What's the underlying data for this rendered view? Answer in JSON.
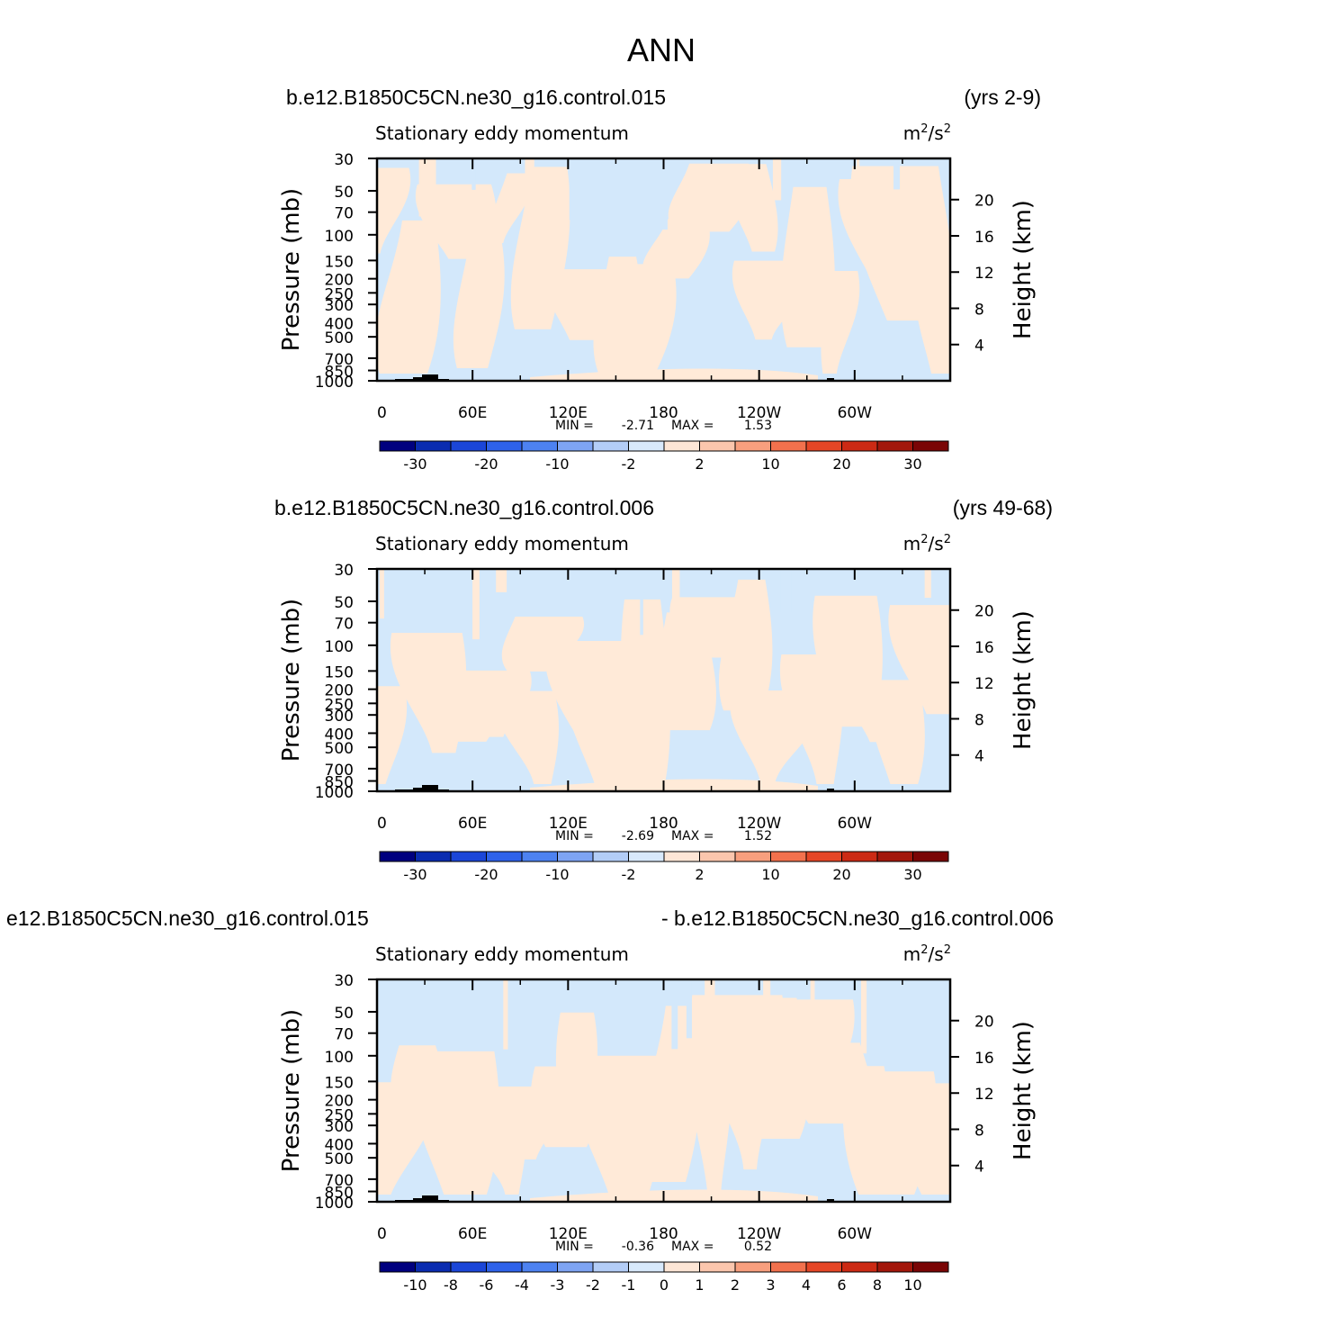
{
  "figure_title": "ANN",
  "colors": {
    "negative_small": "#d3e8fb",
    "positive_small": "#ffead8",
    "topography": "#000000"
  },
  "chart_data": [
    {
      "type": "heatmap",
      "case_left": "b.e12.B1850C5CN.ne30_g16.control.015",
      "case_right": "(yrs 2-9)",
      "subtitle": "Stationary eddy momentum",
      "units": "m²/s²",
      "ylabel": "Pressure (mb)",
      "ylabel_right": "Height (km)",
      "y_scale": "log",
      "ylim": [
        1000,
        30
      ],
      "pressure_ticks": [
        "30",
        "50",
        "70",
        "100",
        "150",
        "200",
        "250",
        "300",
        "400",
        "500",
        "700",
        "850",
        "1000"
      ],
      "height_ticks": [
        "20",
        "16",
        "12",
        "8",
        "4"
      ],
      "x_ticks": [
        "0",
        "60E",
        "120E",
        "180",
        "120W",
        "60W"
      ],
      "stats": {
        "min_label": "MIN =",
        "min": "-2.71",
        "max_label": "MAX =",
        "max": "1.53"
      },
      "colorbar_labels": [
        "-30",
        "-20",
        "-10",
        "-2",
        "2",
        "10",
        "20",
        "30"
      ],
      "colorbar_colors": [
        "#00007f",
        "#0a2cb0",
        "#1b46d8",
        "#2e62ea",
        "#4d82f1",
        "#7ea4f3",
        "#b3cdf7",
        "#d8e9fb",
        "#fde6d6",
        "#fbc6ad",
        "#f89f7e",
        "#f2714d",
        "#e54626",
        "#cc2a14",
        "#a3170b",
        "#7a0505"
      ]
    },
    {
      "type": "heatmap",
      "case_left": "b.e12.B1850C5CN.ne30_g16.control.006",
      "case_right": "(yrs 49-68)",
      "subtitle": "Stationary eddy momentum",
      "units": "m²/s²",
      "ylabel": "Pressure (mb)",
      "ylabel_right": "Height (km)",
      "y_scale": "log",
      "ylim": [
        1000,
        30
      ],
      "pressure_ticks": [
        "30",
        "50",
        "70",
        "100",
        "150",
        "200",
        "250",
        "300",
        "400",
        "500",
        "700",
        "850",
        "1000"
      ],
      "height_ticks": [
        "20",
        "16",
        "12",
        "8",
        "4"
      ],
      "x_ticks": [
        "0",
        "60E",
        "120E",
        "180",
        "120W",
        "60W"
      ],
      "stats": {
        "min_label": "MIN =",
        "min": "-2.69",
        "max_label": "MAX =",
        "max": "1.52"
      },
      "colorbar_labels": [
        "-30",
        "-20",
        "-10",
        "-2",
        "2",
        "10",
        "20",
        "30"
      ],
      "colorbar_colors": [
        "#00007f",
        "#0a2cb0",
        "#1b46d8",
        "#2e62ea",
        "#4d82f1",
        "#7ea4f3",
        "#b3cdf7",
        "#d8e9fb",
        "#fde6d6",
        "#fbc6ad",
        "#f89f7e",
        "#f2714d",
        "#e54626",
        "#cc2a14",
        "#a3170b",
        "#7a0505"
      ]
    },
    {
      "type": "heatmap",
      "case_left": "e12.B1850C5CN.ne30_g16.control.015",
      "case_right": "- b.e12.B1850C5CN.ne30_g16.control.006",
      "subtitle": "Stationary eddy momentum",
      "units": "m²/s²",
      "ylabel": "Pressure (mb)",
      "ylabel_right": "Height (km)",
      "y_scale": "log",
      "ylim": [
        1000,
        30
      ],
      "pressure_ticks": [
        "30",
        "50",
        "70",
        "100",
        "150",
        "200",
        "250",
        "300",
        "400",
        "500",
        "700",
        "850",
        "1000"
      ],
      "height_ticks": [
        "20",
        "16",
        "12",
        "8",
        "4"
      ],
      "x_ticks": [
        "0",
        "60E",
        "120E",
        "180",
        "120W",
        "60W"
      ],
      "stats": {
        "min_label": "MIN =",
        "min": "-0.36",
        "max_label": "MAX =",
        "max": "0.52"
      },
      "colorbar_labels": [
        "-10",
        "-8",
        "-6",
        "-4",
        "-3",
        "-2",
        "-1",
        "0",
        "1",
        "2",
        "3",
        "4",
        "6",
        "8",
        "10"
      ],
      "colorbar_colors": [
        "#00007f",
        "#0a2cb0",
        "#1b46d8",
        "#2e62ea",
        "#4d82f1",
        "#7ea4f3",
        "#b3cdf7",
        "#d8e9fb",
        "#fde6d6",
        "#fbc6ad",
        "#f89f7e",
        "#f2714d",
        "#e54626",
        "#cc2a14",
        "#a3170b",
        "#7a0505"
      ]
    }
  ]
}
